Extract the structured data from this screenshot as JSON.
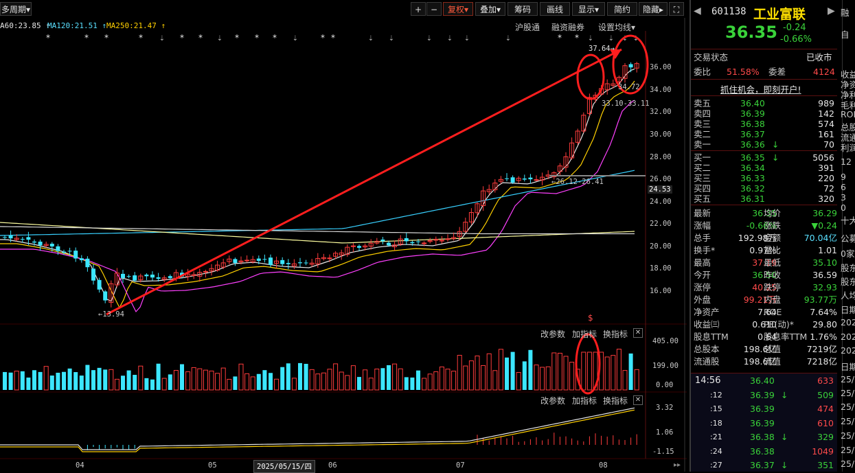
{
  "toolbar": {
    "period": "多周期",
    "plus": "+",
    "minus": "−",
    "fuquan": "复权",
    "diejia": "叠加",
    "choma": "筹码",
    "huaxian": "画线",
    "xianshi": "显示",
    "jianyue": "简约",
    "yincang": "隐藏",
    "expand": "⛶"
  },
  "ma_labels": [
    {
      "text": "A60:23.85",
      "arrow": "↑",
      "color": "#e6e6e6"
    },
    {
      "text": "MA120:21.51",
      "arrow": "↑",
      "color": "#5ae0ff"
    },
    {
      "text": "MA250:21.47",
      "arrow": "↑",
      "color": "#ffd000"
    }
  ],
  "top_links": {
    "hugutong": "沪股通",
    "rongzi": "融资融券",
    "shezhi": "设置均线"
  },
  "price_axis": [
    "36.00",
    "34.00",
    "32.00",
    "30.00",
    "28.00",
    "26.00",
    "24.00",
    "22.00",
    "20.00",
    "18.00",
    "16.00"
  ],
  "price_axis_current": "24.53",
  "annotations": {
    "high": "37.64",
    "low": "13.94",
    "a1": "34.72",
    "a2": "33.10-33.11",
    "a3": "26.12-26.41"
  },
  "vol_axis": [
    "405.00",
    "199.00",
    "0.00"
  ],
  "macd_axis": [
    "3.32",
    "1.06",
    "-1.15"
  ],
  "indicator_buttons": {
    "gai": "改参数",
    "jia": "加指标",
    "huan": "换指标",
    "close": "✕"
  },
  "date_axis": [
    "04",
    "05",
    "06",
    "07",
    "08"
  ],
  "date_cursor": "2025/05/15/四",
  "stock": {
    "code": "601138",
    "name": "工业富联",
    "price": "36.35",
    "change": "-0.24",
    "change_pct": "-0.66%"
  },
  "trade_status": {
    "label": "交易状态",
    "value": "已收市"
  },
  "weibi": {
    "label": "委比",
    "value": "51.58%",
    "label2": "委差",
    "value2": "4124"
  },
  "promo": "抓住机会，即刻开户!",
  "asks": [
    {
      "label": "卖五",
      "price": "36.40",
      "vol": "989",
      "arrow": ""
    },
    {
      "label": "卖四",
      "price": "36.39",
      "vol": "142",
      "arrow": ""
    },
    {
      "label": "卖三",
      "price": "36.38",
      "vol": "574",
      "arrow": ""
    },
    {
      "label": "卖二",
      "price": "36.37",
      "vol": "161",
      "arrow": ""
    },
    {
      "label": "卖一",
      "price": "36.36",
      "vol": "70",
      "arrow": "↓"
    }
  ],
  "bids": [
    {
      "label": "买一",
      "price": "36.35",
      "vol": "5056",
      "arrow": "↓"
    },
    {
      "label": "买二",
      "price": "36.34",
      "vol": "391",
      "arrow": ""
    },
    {
      "label": "买三",
      "price": "36.33",
      "vol": "220",
      "arrow": ""
    },
    {
      "label": "买四",
      "price": "36.32",
      "vol": "72",
      "arrow": ""
    },
    {
      "label": "买五",
      "price": "36.31",
      "vol": "320",
      "arrow": ""
    }
  ],
  "stats": [
    {
      "l1": "最新",
      "v1": "36.35",
      "c1": "green",
      "l2": "均价",
      "v2": "36.29",
      "c2": "green"
    },
    {
      "l1": "涨幅",
      "v1": "-0.66%",
      "c1": "green",
      "l2": "涨跌",
      "v2": "▼0.24",
      "c2": "green"
    },
    {
      "l1": "总手",
      "v1": "192.98万",
      "c1": "white",
      "l2": "金额",
      "v2": "70.04亿",
      "c2": "cyan"
    },
    {
      "l1": "换手*",
      "v1": "0.97%",
      "c1": "white",
      "l2": "量比",
      "v2": "1.01",
      "c2": "white"
    },
    {
      "l1": "最高",
      "v1": "37.19",
      "c1": "red",
      "l2": "最低",
      "v2": "35.10",
      "c2": "green"
    },
    {
      "l1": "今开",
      "v1": "36.50",
      "c1": "green",
      "l2": "昨收",
      "v2": "36.59",
      "c2": "white"
    },
    {
      "l1": "涨停",
      "v1": "40.25",
      "c1": "red",
      "l2": "跌停",
      "v2": "32.93",
      "c2": "green"
    },
    {
      "l1": "外盘",
      "v1": "99.21万",
      "c1": "red",
      "l2": "内盘",
      "v2": "93.77万",
      "c2": "green"
    },
    {
      "l1": "净资产",
      "v1": "7.64",
      "c1": "white",
      "l2": "ROE",
      "v2": "7.64%",
      "c2": "white"
    },
    {
      "l1": "收益㈢",
      "v1": "0.610",
      "c1": "white",
      "l2": "PE(动)*",
      "v2": "29.80",
      "c2": "white"
    },
    {
      "l1": "股息TTM",
      "v1": "0.64",
      "c1": "white",
      "l2": "股息率TTM",
      "v2": "1.76%",
      "c2": "white"
    },
    {
      "l1": "总股本",
      "v1": "198.6亿",
      "c1": "white",
      "l2": "总值",
      "v2": "7219亿",
      "c2": "white"
    },
    {
      "l1": "流通股",
      "v1": "198.6亿",
      "c1": "white",
      "l2": "流值",
      "v2": "7218亿",
      "c2": "white"
    }
  ],
  "ticks": [
    {
      "time": "14:56",
      "price": "36.40",
      "arrow": "",
      "vol": "633",
      "vc": "red"
    },
    {
      "time": ":12",
      "price": "36.39",
      "arrow": "↓",
      "vol": "509",
      "vc": "green"
    },
    {
      "time": ":15",
      "price": "36.39",
      "arrow": "",
      "vol": "474",
      "vc": "red"
    },
    {
      "time": ":18",
      "price": "36.39",
      "arrow": "",
      "vol": "610",
      "vc": "red"
    },
    {
      "time": ":21",
      "price": "36.38",
      "arrow": "↓",
      "vol": "329",
      "vc": "green"
    },
    {
      "time": ":24",
      "price": "36.38",
      "arrow": "",
      "vol": "1049",
      "vc": "red"
    },
    {
      "time": ":27",
      "price": "36.37",
      "arrow": "↓",
      "vol": "351",
      "vc": "green"
    }
  ],
  "side_cut": [
    "融",
    "自",
    "收益",
    "净资",
    "净利",
    "毛利",
    "ROE",
    "总股",
    "流通",
    "利润",
    "12",
    "9",
    "6",
    "3",
    "0",
    "十大",
    "公募",
    "0家",
    "股东",
    "股东",
    "人均",
    "日期",
    "202",
    "202",
    "202",
    "日期",
    "25/",
    "25/",
    "25/",
    "25/",
    "25/",
    "25/",
    "25/"
  ]
}
